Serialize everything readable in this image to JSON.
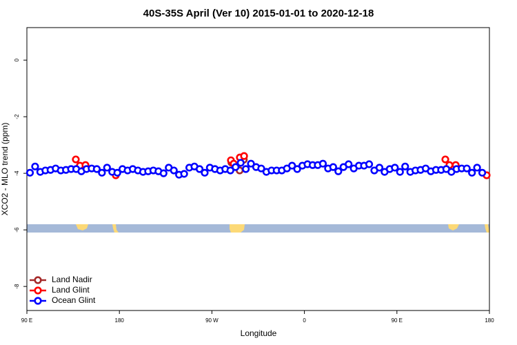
{
  "chart_data": {
    "type": "scatter",
    "title": "40S-35S April (Ver 10)   2015-01-01 to 2020-12-18",
    "x_label": "Longitude",
    "y_label": "XCO2 - MLO trend (ppm)",
    "xlim": [
      90,
      540
    ],
    "ylim": [
      -8.85,
      1.15
    ],
    "xticks": [
      {
        "value": 90,
        "label": "90 E"
      },
      180,
      {
        "value": 270,
        "label": "90 W"
      },
      {
        "value": 360,
        "label": "0"
      },
      {
        "value": 450,
        "label": "90 E"
      },
      {
        "value": 540,
        "label": "180"
      }
    ],
    "yticks": [
      0,
      -2,
      -4,
      -6,
      -8
    ],
    "legend": "bottom-left",
    "series": [
      {
        "name": "Land Nadir",
        "color": "#a52a2a",
        "x": [
          289,
          293,
          297,
          301
        ],
        "values": [
          -3.62,
          -3.75,
          -3.9,
          -3.52
        ]
      },
      {
        "name": "Land Glint",
        "color": "#ff0000",
        "x": [
          137.6,
          141.6,
          147,
          176.5,
          288.5,
          291.2,
          297.2,
          301.3,
          497.1,
          501.1,
          507.2,
          537.3
        ],
        "values": [
          -3.51,
          -3.73,
          -3.71,
          -4.07,
          -3.54,
          -3.66,
          -3.44,
          -3.39,
          -3.51,
          -3.71,
          -3.71,
          -4.07
        ]
      },
      {
        "name": "Ocean Glint",
        "color": "#0000ff",
        "x": [
          93,
          98,
          103,
          108,
          113,
          118,
          123,
          128,
          133,
          138,
          143,
          148,
          153,
          158,
          163,
          168,
          173,
          178,
          183,
          188,
          193,
          198,
          203,
          208,
          213,
          218,
          223,
          228,
          233,
          238,
          243,
          248,
          253,
          258,
          263,
          268,
          273,
          278,
          283,
          288,
          293,
          298,
          303,
          308,
          313,
          318,
          323,
          328,
          333,
          338,
          343,
          348,
          353,
          358,
          363,
          368,
          373,
          378,
          383,
          388,
          393,
          398,
          403,
          408,
          413,
          418,
          423,
          428,
          433,
          438,
          443,
          448,
          453,
          458,
          463,
          468,
          473,
          478,
          483,
          488,
          493,
          498,
          503,
          508,
          513,
          518,
          523,
          528,
          533
        ],
        "values": [
          -3.98,
          -3.76,
          -3.95,
          -3.9,
          -3.88,
          -3.83,
          -3.9,
          -3.88,
          -3.85,
          -3.85,
          -3.93,
          -3.85,
          -3.83,
          -3.85,
          -3.98,
          -3.8,
          -3.95,
          -3.98,
          -3.85,
          -3.9,
          -3.85,
          -3.9,
          -3.95,
          -3.93,
          -3.9,
          -3.93,
          -4.0,
          -3.8,
          -3.9,
          -4.05,
          -4.02,
          -3.8,
          -3.76,
          -3.85,
          -3.98,
          -3.8,
          -3.85,
          -3.9,
          -3.85,
          -3.9,
          -3.78,
          -3.63,
          -3.85,
          -3.66,
          -3.78,
          -3.83,
          -3.95,
          -3.9,
          -3.9,
          -3.9,
          -3.83,
          -3.73,
          -3.85,
          -3.73,
          -3.68,
          -3.71,
          -3.71,
          -3.66,
          -3.83,
          -3.78,
          -3.93,
          -3.78,
          -3.68,
          -3.83,
          -3.73,
          -3.73,
          -3.68,
          -3.9,
          -3.8,
          -3.95,
          -3.85,
          -3.8,
          -3.95,
          -3.76,
          -3.95,
          -3.9,
          -3.88,
          -3.83,
          -3.93,
          -3.88,
          -3.88,
          -3.85,
          -3.95,
          -3.85,
          -3.83,
          -3.83,
          -3.98,
          -3.8,
          -3.98
        ]
      }
    ]
  }
}
